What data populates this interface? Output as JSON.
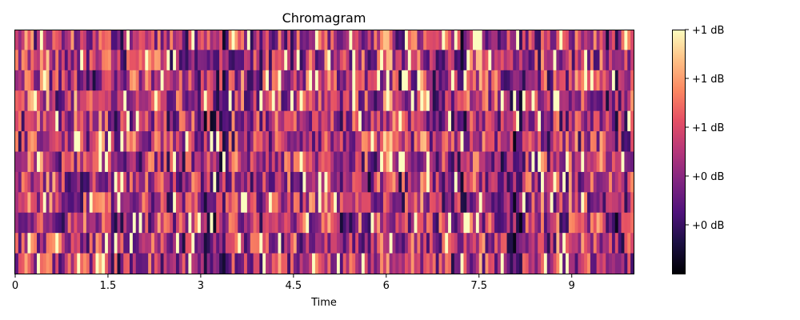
{
  "chart_data": {
    "type": "heatmap",
    "title": "Chromagram",
    "xlabel": "Time",
    "ylabel": "",
    "xlim": [
      0,
      10
    ],
    "x_ticks": [
      0,
      1.5,
      3,
      4.5,
      6,
      7.5,
      9
    ],
    "x_tick_labels": [
      "0",
      "1.5",
      "3",
      "4.5",
      "6",
      "7.5",
      "9"
    ],
    "n_rows": 12,
    "n_frames": 200,
    "colormap": "magma",
    "colorbar": {
      "tick_labels": [
        "+1 dB",
        "+1 dB",
        "+1 dB",
        "+0 dB",
        "+0 dB"
      ],
      "tick_values": [
        1.0,
        0.8,
        0.6,
        0.4,
        0.2
      ],
      "range": [
        0,
        1
      ]
    },
    "note_values": "cell values are normalized chroma energy 0-1; exact values not readable from image"
  }
}
